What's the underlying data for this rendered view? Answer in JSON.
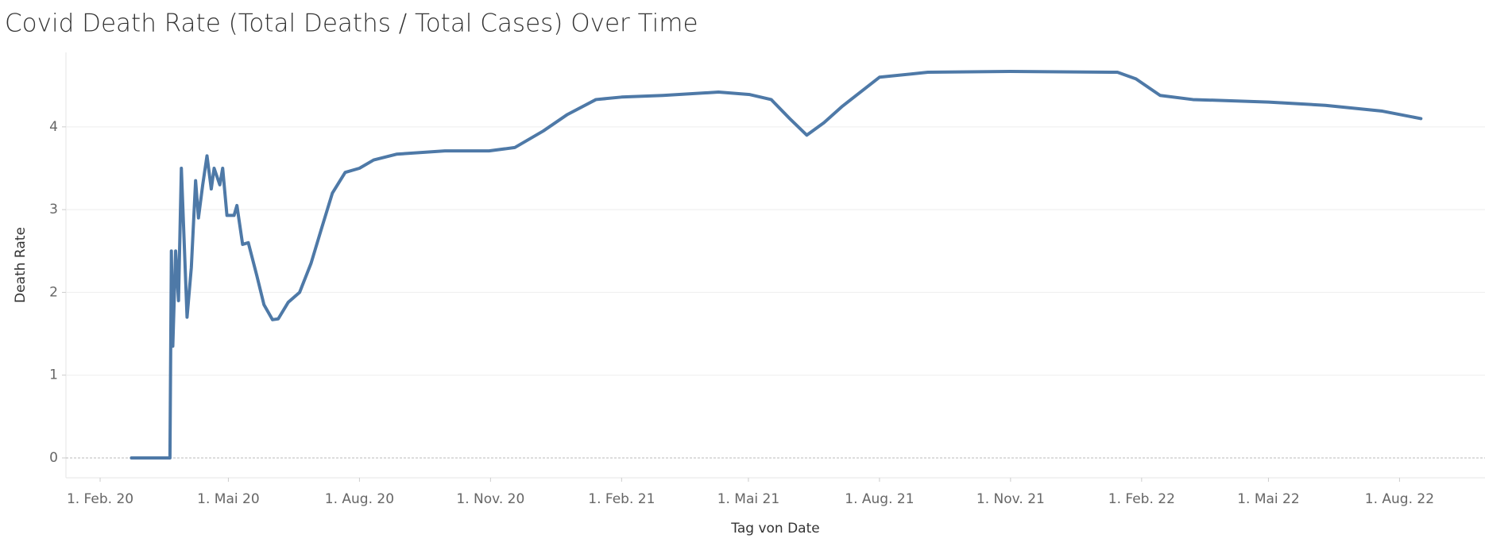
{
  "chart_data": {
    "type": "line",
    "title": "Covid Death Rate (Total Deaths / Total Cases) Over Time",
    "xlabel": "Tag von Date",
    "ylabel": "Death Rate",
    "color": "#4e79a7",
    "grid": true,
    "x": [
      "2020-02-23",
      "2020-03-21",
      "2020-03-22",
      "2020-03-23",
      "2020-03-25",
      "2020-03-27",
      "2020-03-29",
      "2020-04-02",
      "2020-04-05",
      "2020-04-08",
      "2020-04-10",
      "2020-04-13",
      "2020-04-16",
      "2020-04-19",
      "2020-04-21",
      "2020-04-25",
      "2020-04-27",
      "2020-04-30",
      "2020-05-05",
      "2020-05-07",
      "2020-05-11",
      "2020-05-15",
      "2020-05-21",
      "2020-05-26",
      "2020-06-01",
      "2020-06-05",
      "2020-06-12",
      "2020-06-20",
      "2020-06-28",
      "2020-07-05",
      "2020-07-13",
      "2020-07-22",
      "2020-08-01",
      "2020-08-11",
      "2020-08-27",
      "2020-09-30",
      "2020-10-31",
      "2020-11-18",
      "2020-12-08",
      "2020-12-25",
      "2021-01-14",
      "2021-02-01",
      "2021-03-02",
      "2021-04-10",
      "2021-05-02",
      "2021-05-17",
      "2021-05-30",
      "2021-06-11",
      "2021-06-23",
      "2021-07-06",
      "2021-08-01",
      "2021-09-04",
      "2021-11-01",
      "2022-01-15",
      "2022-01-28",
      "2022-02-14",
      "2022-03-09",
      "2022-05-01",
      "2022-06-10",
      "2022-07-20",
      "2022-08-16"
    ],
    "values": [
      0,
      0,
      2.5,
      1.35,
      2.5,
      1.9,
      3.5,
      1.7,
      2.3,
      3.35,
      2.9,
      3.3,
      3.65,
      3.25,
      3.5,
      3.3,
      3.5,
      2.93,
      2.93,
      3.05,
      2.58,
      2.6,
      2.2,
      1.85,
      1.67,
      1.68,
      1.88,
      2.0,
      2.35,
      2.75,
      3.2,
      3.45,
      3.5,
      3.6,
      3.67,
      3.71,
      3.71,
      3.75,
      3.95,
      4.15,
      4.33,
      4.36,
      4.38,
      4.42,
      4.39,
      4.33,
      4.1,
      3.9,
      4.05,
      4.25,
      4.6,
      4.66,
      4.67,
      4.66,
      4.58,
      4.38,
      4.33,
      4.3,
      4.26,
      4.19,
      4.1
    ],
    "xlim": [
      "2020-01-08",
      "2022-09-30"
    ],
    "xticks": [
      {
        "value": "2020-02-01",
        "label": "1. Feb. 20"
      },
      {
        "value": "2020-05-01",
        "label": "1. Mai 20"
      },
      {
        "value": "2020-08-01",
        "label": "1. Aug. 20"
      },
      {
        "value": "2020-11-01",
        "label": "1. Nov. 20"
      },
      {
        "value": "2021-02-01",
        "label": "1. Feb. 21"
      },
      {
        "value": "2021-05-01",
        "label": "1. Mai 21"
      },
      {
        "value": "2021-08-01",
        "label": "1. Aug. 21"
      },
      {
        "value": "2021-11-01",
        "label": "1. Nov. 21"
      },
      {
        "value": "2022-02-01",
        "label": "1. Feb. 22"
      },
      {
        "value": "2022-05-01",
        "label": "1. Mai 22"
      },
      {
        "value": "2022-08-01",
        "label": "1. Aug. 22"
      }
    ],
    "ylim": [
      -0.24,
      4.9
    ],
    "yticks": [
      0,
      1,
      2,
      3,
      4
    ]
  }
}
